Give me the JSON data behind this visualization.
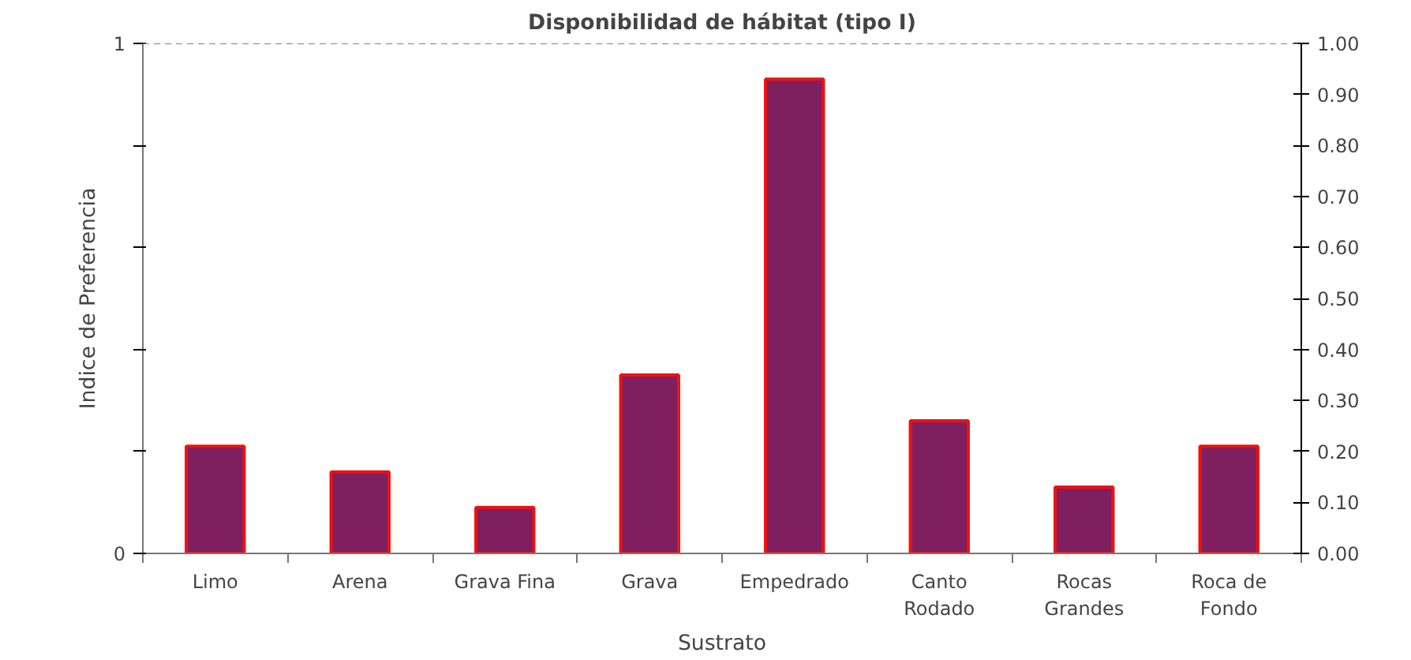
{
  "chart_data": {
    "type": "bar",
    "title": "Disponibilidad de hábitat (tipo I)",
    "xlabel": "Sustrato",
    "ylabel": "Indice de Preferencia",
    "categories": [
      "Limo",
      "Arena",
      "Grava Fina",
      "Grava",
      "Empedrado",
      "Canto\nRodado",
      "Rocas\nGrandes",
      "Roca de\nFondo"
    ],
    "values": [
      0.21,
      0.16,
      0.09,
      0.35,
      0.93,
      0.26,
      0.13,
      0.21
    ],
    "color": "#7f1f5f",
    "ylim": [
      0,
      1
    ],
    "yticks": [
      0,
      {
        "value": 0.2,
        "label": null
      },
      {
        "value": 0.4,
        "label": null
      },
      {
        "value": 0.6,
        "label": null
      },
      {
        "value": 0.8,
        "label": null
      },
      1
    ],
    "y2lim": [
      0,
      1
    ],
    "y2ticks": [
      {
        "value": 0,
        "label": "0.00"
      },
      {
        "value": 0.1,
        "label": "0.10"
      },
      {
        "value": 0.2,
        "label": "0.20"
      },
      {
        "value": 0.3,
        "label": "0.30"
      },
      {
        "value": 0.4,
        "label": "0.40"
      },
      {
        "value": 0.5,
        "label": "0.50"
      },
      {
        "value": 0.6,
        "label": "0.60"
      },
      {
        "value": 0.7,
        "label": "0.70"
      },
      {
        "value": 0.8,
        "label": "0.80"
      },
      {
        "value": 0.9,
        "label": "0.90"
      },
      {
        "value": 1,
        "label": "1.00"
      }
    ],
    "ref_lines": [
      {
        "axis": "y",
        "value": 1,
        "line_style": "dashed",
        "color": "#808080"
      }
    ],
    "grid": false
  }
}
